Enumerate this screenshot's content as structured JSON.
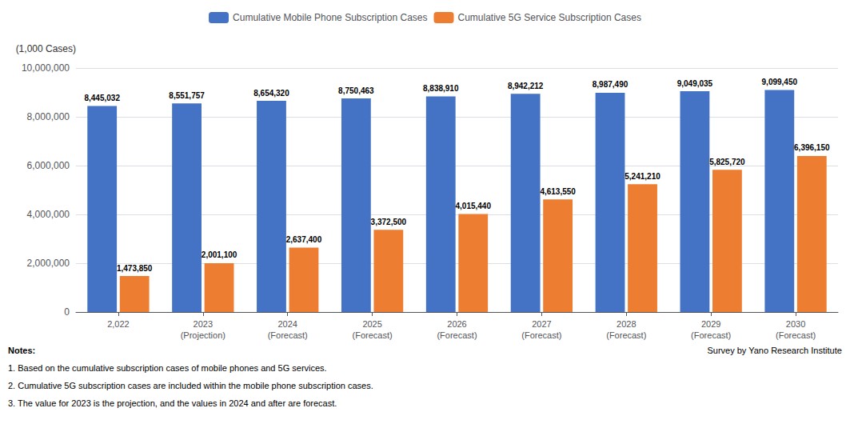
{
  "chart_data": {
    "type": "bar",
    "categories": [
      "2,022",
      "2023\n(Projection)",
      "2024\n(Forecast)",
      "2025\n(Forecast)",
      "2026\n(Forecast)",
      "2027\n(Forecast)",
      "2028\n(Forecast)",
      "2029\n(Forecast)",
      "2030\n(Forecast)"
    ],
    "series": [
      {
        "name": "Cumulative Mobile Phone Subscription Cases",
        "color": "#4472C4",
        "values": [
          8445032,
          8551757,
          8654320,
          8750463,
          8838910,
          8942212,
          8987490,
          9049035,
          9099450
        ],
        "value_labels": [
          "8,445,032",
          "8,551,757",
          "8,654,320",
          "8,750,463",
          "8,838,910",
          "8,942,212",
          "8,987,490",
          "9,049,035",
          "9,099,450"
        ]
      },
      {
        "name": "Cumulative 5G Service Subscription Cases",
        "color": "#ED7D31",
        "values": [
          1473850,
          2001100,
          2637400,
          3372500,
          4015440,
          4613550,
          5241210,
          5825720,
          6396150
        ],
        "value_labels": [
          "1,473,850",
          "2,001,100",
          "2,637,400",
          "3,372,500",
          "4,015,440",
          "4,613,550",
          "5,241,210",
          "5,825,720",
          "6,396,150"
        ]
      }
    ],
    "ylabel": "(1,000 Cases)",
    "ylim": [
      0,
      10000000
    ],
    "yticks": [
      0,
      {
        "value": 2000000,
        "label": "2,000,000"
      },
      {
        "value": 4000000,
        "label": "4,000,000"
      },
      {
        "value": 6000000,
        "label": "6,000,000"
      },
      {
        "value": 8000000,
        "label": "8,000,000"
      },
      {
        "value": 10000000,
        "label": "10,000,000"
      }
    ],
    "grid": true,
    "legend": "top",
    "data_labels": true,
    "annotations": [
      "Notes:",
      "1. Based on the cumulative subscription cases of mobile phones and 5G services.",
      "2. Cumulative 5G subscription cases are included within the mobile phone subscription cases.",
      "3. The value for 2023 is the projection, and the values in 2024 and after are forecast.",
      "Survey by Yano Research Institute"
    ]
  }
}
